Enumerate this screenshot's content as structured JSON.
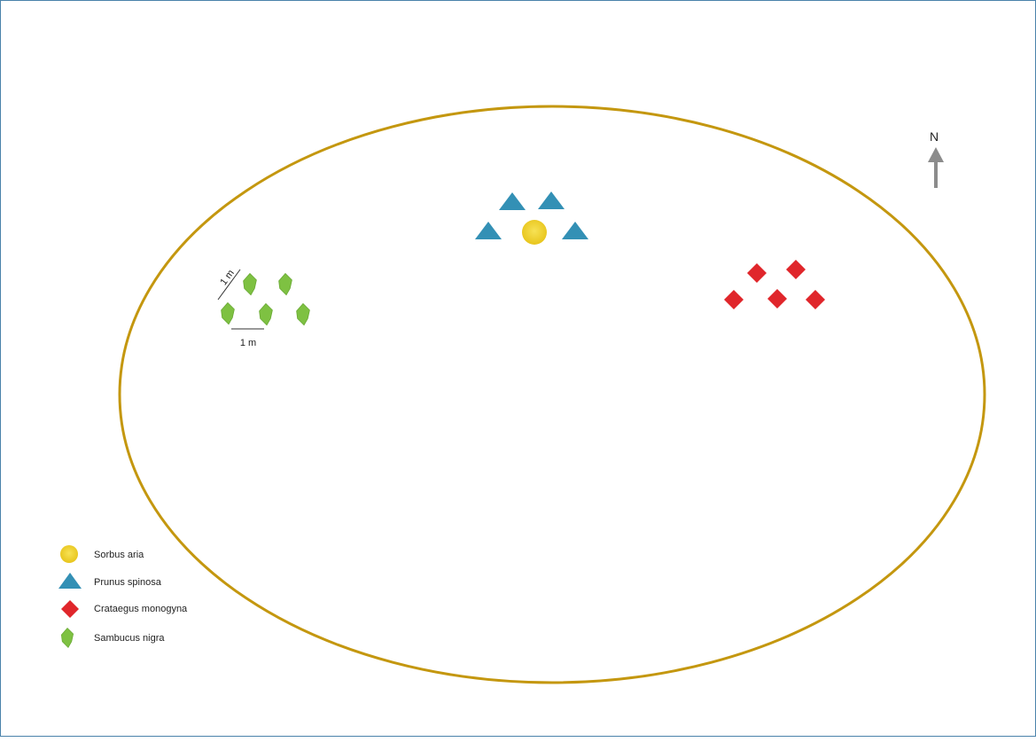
{
  "compass": {
    "label": "N"
  },
  "scale": {
    "diagonal_label": "1 m",
    "horizontal_label": "1 m"
  },
  "colors": {
    "frame": "#4a83ab",
    "ellipse": "#c4970f",
    "sorbus": "#f2d431",
    "prunus": "#3390b5",
    "crataegus": "#e0262b",
    "sambucus": "#7ec142",
    "arrow": "#8c8c8c"
  },
  "legend": [
    {
      "symbol": "sorbus-circle-icon",
      "label": "Sorbus aria"
    },
    {
      "symbol": "prunus-triangle-icon",
      "label": "Prunus spinosa"
    },
    {
      "symbol": "crataegus-diamond-icon",
      "label": "Crataegus monogyna"
    },
    {
      "symbol": "sambucus-leaf-icon",
      "label": "Sambucus nigra"
    }
  ]
}
